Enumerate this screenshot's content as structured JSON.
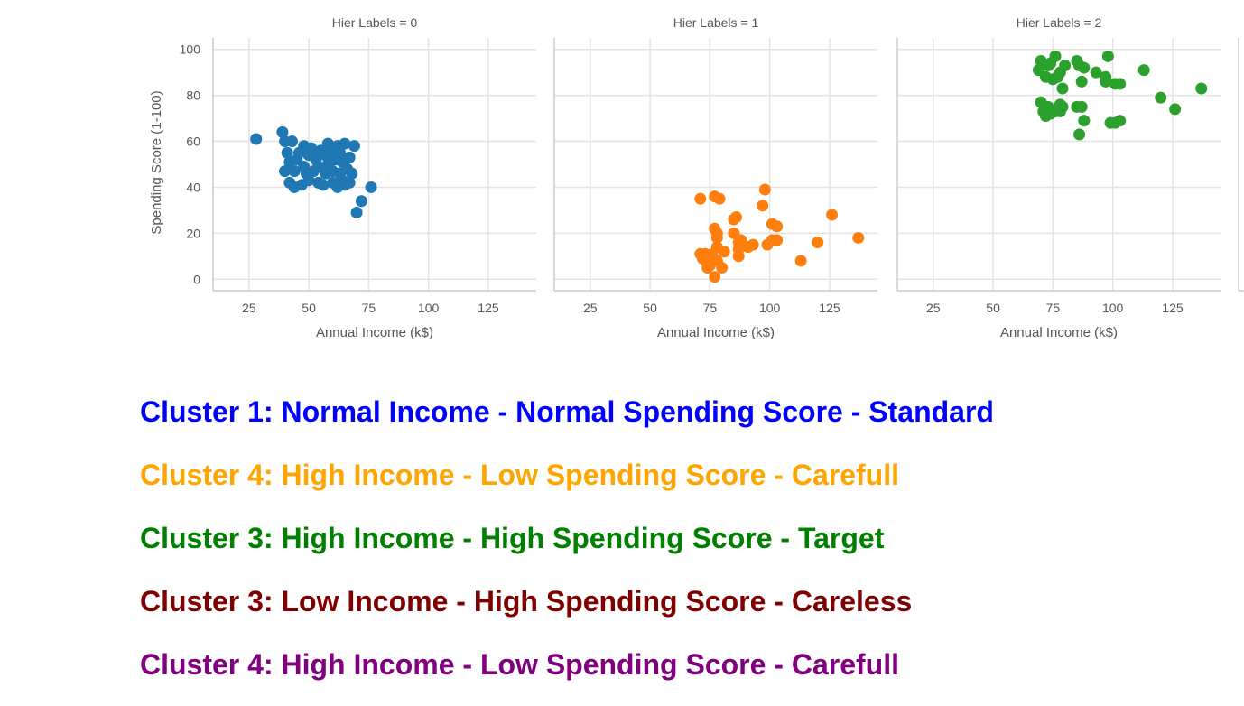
{
  "chart_data": [
    {
      "type": "scatter",
      "title": "Hier Labels = 0",
      "xlabel": "Annual Income (k$)",
      "ylabel": "Spending Score (1-100)",
      "xlim": [
        10,
        145
      ],
      "ylim": [
        -5,
        105
      ],
      "xticks": [
        25,
        50,
        75,
        100,
        125
      ],
      "yticks": [
        0,
        20,
        40,
        60,
        80,
        100
      ],
      "grid": true,
      "color": "#1f77b4",
      "x": [
        28,
        39,
        40,
        40,
        41,
        42,
        42,
        43,
        44,
        44,
        45,
        46,
        47,
        48,
        48,
        49,
        50,
        50,
        51,
        52,
        53,
        54,
        54,
        54,
        55,
        56,
        57,
        57,
        58,
        58,
        59,
        60,
        60,
        60,
        61,
        62,
        62,
        63,
        63,
        64,
        64,
        65,
        65,
        66,
        67,
        67,
        68,
        69,
        70,
        72,
        76
      ],
      "y": [
        61,
        64,
        60,
        47,
        55,
        42,
        51,
        60,
        47,
        40,
        52,
        55,
        41,
        58,
        49,
        46,
        54,
        43,
        57,
        47,
        52,
        42,
        55,
        49,
        56,
        41,
        54,
        46,
        59,
        50,
        55,
        42,
        47,
        57,
        52,
        40,
        58,
        46,
        55,
        43,
        51,
        59,
        41,
        48,
        42,
        53,
        46,
        58,
        29,
        34,
        40
      ]
    },
    {
      "type": "scatter",
      "title": "Hier Labels = 1",
      "xlabel": "Annual Income (k$)",
      "ylabel": "",
      "xlim": [
        10,
        145
      ],
      "ylim": [
        -5,
        105
      ],
      "xticks": [
        25,
        50,
        75,
        100,
        125
      ],
      "yticks": [
        0,
        20,
        40,
        60,
        80,
        100
      ],
      "grid": true,
      "color": "#ff7f0e",
      "x": [
        71,
        71,
        72,
        73,
        73,
        74,
        75,
        76,
        77,
        77,
        77,
        78,
        78,
        78,
        78,
        79,
        80,
        81,
        85,
        85,
        86,
        87,
        87,
        87,
        88,
        88,
        91,
        93,
        97,
        98,
        99,
        101,
        101,
        103,
        103,
        113,
        120,
        126,
        137
      ],
      "y": [
        35,
        11,
        9,
        8,
        11,
        5,
        6,
        11,
        36,
        22,
        1,
        14,
        18,
        20,
        8,
        35,
        5,
        12,
        26,
        20,
        27,
        13,
        10,
        16,
        15,
        17,
        14,
        15,
        32,
        39,
        15,
        17,
        24,
        23,
        17,
        8,
        16,
        28,
        18
      ]
    },
    {
      "type": "scatter",
      "title": "Hier Labels = 2",
      "xlabel": "Annual Income (k$)",
      "ylabel": "",
      "xlim": [
        10,
        145
      ],
      "ylim": [
        -5,
        105
      ],
      "xticks": [
        25,
        50,
        75,
        100,
        125
      ],
      "yticks": [
        0,
        20,
        40,
        60,
        80,
        100
      ],
      "grid": true,
      "color": "#2ca02c",
      "x": [
        69,
        70,
        70,
        71,
        72,
        72,
        73,
        73,
        74,
        74,
        75,
        76,
        76,
        77,
        77,
        78,
        78,
        78,
        79,
        79,
        80,
        85,
        85,
        86,
        86,
        87,
        87,
        88,
        88,
        93,
        97,
        97,
        98,
        99,
        101,
        101,
        103,
        103,
        113,
        120,
        126,
        137
      ],
      "y": [
        91,
        77,
        95,
        73,
        71,
        88,
        75,
        93,
        72,
        94,
        87,
        73,
        97,
        74,
        88,
        73,
        76,
        90,
        83,
        75,
        93,
        75,
        95,
        93,
        63,
        75,
        86,
        92,
        69,
        90,
        86,
        88,
        97,
        68,
        68,
        85,
        69,
        85,
        91,
        79,
        74,
        83
      ]
    }
  ],
  "clusters": [
    {
      "text": "Cluster 1: Normal Income - Normal Spending Score - Standard",
      "color": "#0000ff"
    },
    {
      "text": "Cluster 4: High Income - Low Spending Score - Carefull",
      "color": "#ffa500"
    },
    {
      "text": "Cluster 3: High Income - High Spending Score - Target",
      "color": "#008000"
    },
    {
      "text": "Cluster 3: Low Income - High Spending Score - Careless",
      "color": "#800000"
    },
    {
      "text": "Cluster 4: High Income - Low Spending Score - Carefull",
      "color": "#800080"
    }
  ]
}
